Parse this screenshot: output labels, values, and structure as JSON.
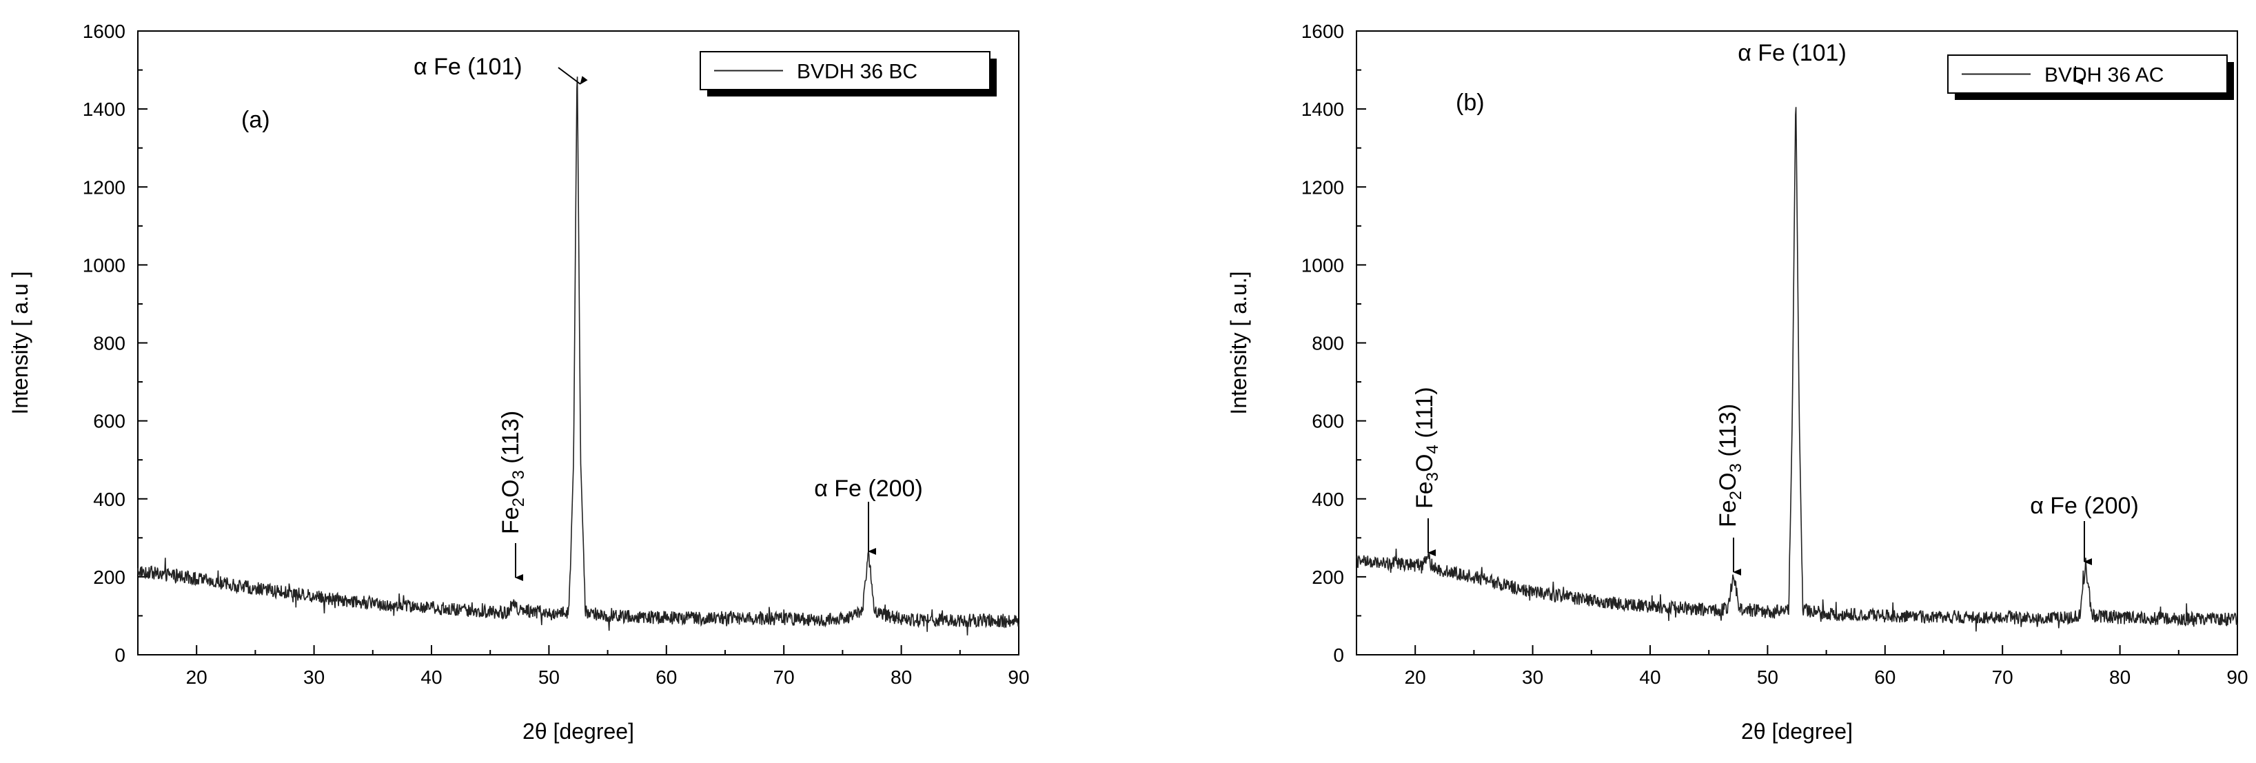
{
  "chart_data": [
    {
      "type": "line",
      "panel_label": "(a)",
      "xlabel": "2θ [degree]",
      "ylabel": "Intensity [ a.u ]",
      "xlim": [
        15,
        90
      ],
      "ylim": [
        0,
        1600
      ],
      "x_ticks": [
        20,
        30,
        40,
        50,
        60,
        70,
        80,
        90
      ],
      "y_ticks": [
        0,
        200,
        400,
        600,
        800,
        1000,
        1200,
        1400,
        1600
      ],
      "grid": false,
      "legend_position": "top-right",
      "series": [
        {
          "name": "BVDH 36 BC",
          "color": "#222222",
          "x": [
            15,
            17.5,
            20,
            22.5,
            25,
            27.5,
            30,
            32.5,
            35,
            37.5,
            40,
            42.5,
            45,
            46.5,
            47.0,
            47.4,
            48,
            50,
            51.7,
            52.1,
            52.4,
            52.7,
            53.1,
            55,
            60,
            65,
            70,
            75,
            76.7,
            77.2,
            77.7,
            80,
            85,
            90
          ],
          "y": [
            215,
            205,
            195,
            182,
            170,
            160,
            150,
            140,
            132,
            125,
            120,
            115,
            110,
            108,
            140,
            112,
            115,
            105,
            110,
            500,
            1540,
            500,
            110,
            100,
            95,
            95,
            92,
            90,
            110,
            270,
            110,
            90,
            88,
            88
          ]
        }
      ],
      "annotations": [
        {
          "id": "afe101",
          "text": "α Fe (101)",
          "x": 52.4,
          "y": 1540
        },
        {
          "id": "fe2o3",
          "compound": "Fe",
          "sub1": "2",
          "mid": "O",
          "sub2": "3",
          "hkl": "(113)",
          "x": 47.0,
          "y": 140
        },
        {
          "id": "afe200",
          "text": "α Fe (200)",
          "x": 77.2,
          "y": 270
        }
      ]
    },
    {
      "type": "line",
      "panel_label": "(b)",
      "xlabel": "2θ [degree]",
      "ylabel": "Intensity [ a.u.]",
      "xlim": [
        15,
        90
      ],
      "ylim": [
        0,
        1600
      ],
      "x_ticks": [
        20,
        30,
        40,
        50,
        60,
        70,
        80,
        90
      ],
      "y_ticks": [
        0,
        200,
        400,
        600,
        800,
        1000,
        1200,
        1400,
        1600
      ],
      "grid": false,
      "legend_position": "top-right",
      "series": [
        {
          "name": "BVDH 36  AC",
          "color": "#222222",
          "x": [
            15,
            17.5,
            20,
            20.6,
            21.0,
            21.5,
            22.5,
            25,
            27.5,
            30,
            32.5,
            35,
            37.5,
            40,
            42.5,
            45,
            46.6,
            47.1,
            47.6,
            50,
            51.8,
            52.1,
            52.4,
            52.7,
            53.0,
            55,
            60,
            65,
            70,
            75,
            76.6,
            77.1,
            77.6,
            80,
            85,
            90
          ],
          "y": [
            240,
            235,
            230,
            225,
            255,
            225,
            215,
            200,
            180,
            160,
            150,
            140,
            130,
            125,
            120,
            115,
            118,
            210,
            118,
            110,
            115,
            600,
            1455,
            600,
            115,
            105,
            100,
            98,
            95,
            95,
            100,
            240,
            100,
            95,
            92,
            92
          ]
        }
      ],
      "annotations": [
        {
          "id": "afe101",
          "text": "α Fe (101)",
          "x": 52.4,
          "y": 1455
        },
        {
          "id": "fe3o4",
          "compound": "Fe",
          "sub1": "3",
          "mid": "O",
          "sub2": "4",
          "hkl": "(111)",
          "x": 21.0,
          "y": 255
        },
        {
          "id": "fe2o3",
          "compound": "Fe",
          "sub1": "2",
          "mid": "O",
          "sub2": "3",
          "hkl": "(113)",
          "x": 47.1,
          "y": 210
        },
        {
          "id": "afe200",
          "text": "α Fe (200)",
          "x": 77.1,
          "y": 240
        }
      ]
    }
  ]
}
